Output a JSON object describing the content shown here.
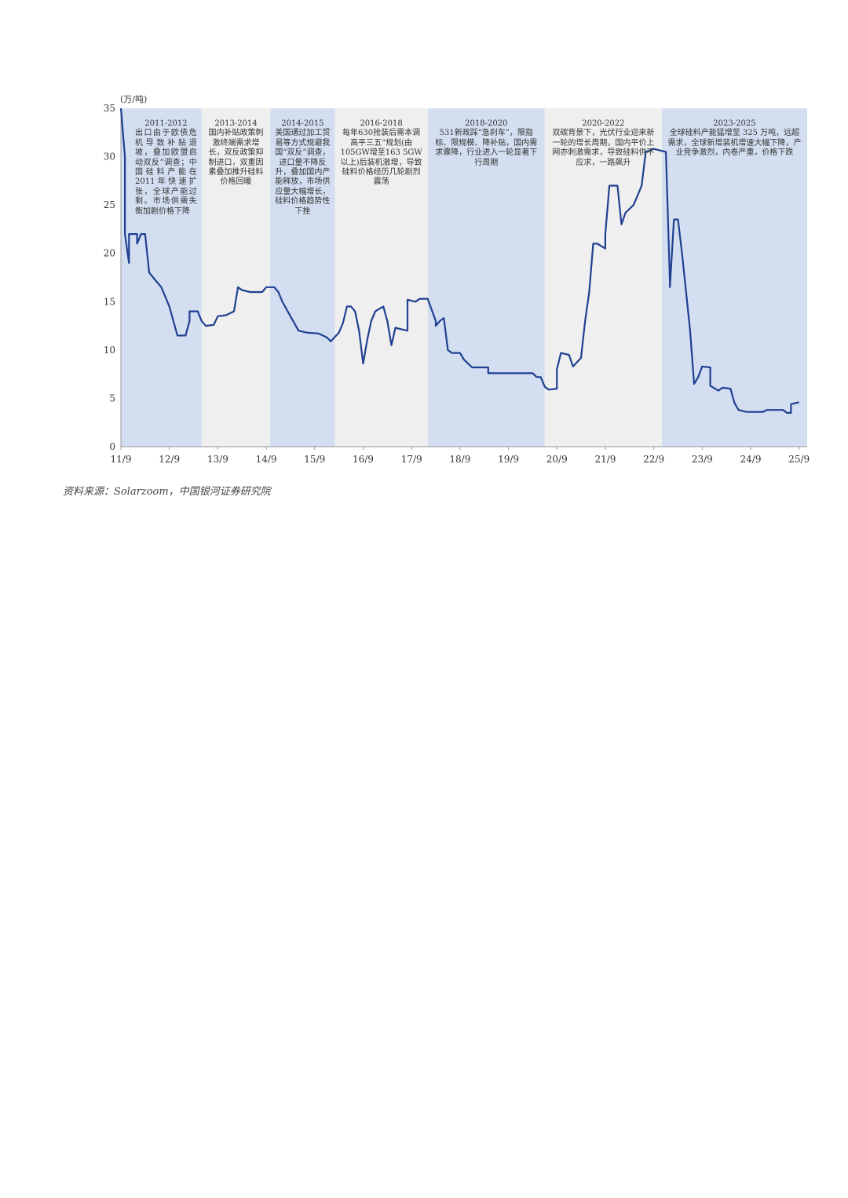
{
  "chart_data": {
    "type": "line",
    "title": "",
    "unit_label": "(万/吨)",
    "xlabel": "",
    "ylabel": "",
    "ylim": [
      0,
      35
    ],
    "yticks": [
      0,
      5,
      10,
      15,
      20,
      25,
      30,
      35
    ],
    "x_range": [
      "2011-09",
      "2025-11"
    ],
    "xticks": [
      "11/9",
      "12/9",
      "13/9",
      "14/9",
      "15/9",
      "16/9",
      "17/9",
      "18/9",
      "19/9",
      "20/9",
      "21/9",
      "22/9",
      "23/9",
      "24/9",
      "25/9"
    ],
    "xtick_dates": [
      "2011-09",
      "2012-09",
      "2013-09",
      "2014-09",
      "2015-09",
      "2016-09",
      "2017-09",
      "2018-09",
      "2019-09",
      "2020-09",
      "2021-09",
      "2022-09",
      "2023-09",
      "2024-09",
      "2025-09"
    ],
    "grid": false,
    "colors": {
      "line": "#1f3f91",
      "band_blue": "#d3dff1",
      "band_gray": "#efefef",
      "axis": "#999999"
    },
    "bands": [
      {
        "start": "2011-09",
        "end": "2013-05",
        "shade": "blue",
        "period": "2011-2012",
        "text": "出口由于欧债危机导致补贴退坡，叠加欧盟启动双反”调查；中国硅料产能在2011年快速扩张，全球产能过剩。市场供需失衡加剧价格下降"
      },
      {
        "start": "2013-05",
        "end": "2014-10",
        "shade": "gray",
        "period": "2013-2014",
        "text": "国内补贴政策刺激终端需求增长，双反政策抑制进口，双重因素叠加推升硅料价格回暖"
      },
      {
        "start": "2014-10",
        "end": "2016-02",
        "shade": "blue",
        "period": "2014-2015",
        "text": "美国通过加工贸易等方式规避我国“双反”调查，进口量不降反升，叠加国内产能释放，市场供应量大幅增长，硅料价格趋势性下挫"
      },
      {
        "start": "2016-02",
        "end": "2018-01",
        "shade": "gray",
        "period": "2016-2018",
        "text": "每年630抢装后需本调高平三五”规划(由105GW增至163 5GW以上)后装机激增，导致硅料价格经历几轮剧烈震荡"
      },
      {
        "start": "2018-01",
        "end": "2020-06",
        "shade": "blue",
        "period": "2018-2020",
        "text": "531新政踩“急刹车”，限指标、限规模、降补贴，国内需求骤降，行业进入一轮显著下行周期"
      },
      {
        "start": "2020-06",
        "end": "2022-11",
        "shade": "gray",
        "period": "2020-2022",
        "text": "双碳背景下，光伏行业迎来新一轮的增长周期，国内平价上网亦刺激需求，导致硅料供不应求，一路飙升"
      },
      {
        "start": "2022-11",
        "end": "2025-11",
        "shade": "blue",
        "period": "2023-2025",
        "text": "全球硅料产能猛增至 325 万吨，远超需求，全球新增装机增速大幅下降，产业竞争激烈，内卷严重，价格下跌"
      }
    ],
    "series": [
      {
        "points": [
          [
            "2011-09",
            35
          ],
          [
            "2011-10",
            30
          ],
          [
            "2011-10",
            22
          ],
          [
            "2011-11",
            19
          ],
          [
            "2011-11",
            22
          ],
          [
            "2012-01",
            22
          ],
          [
            "2012-01",
            21
          ],
          [
            "2012-02",
            22
          ],
          [
            "2012-03",
            22
          ],
          [
            "2012-04",
            18
          ],
          [
            "2012-05",
            17.5
          ],
          [
            "2012-07",
            16.5
          ],
          [
            "2012-09",
            14.5
          ],
          [
            "2012-10",
            13
          ],
          [
            "2012-11",
            11.5
          ],
          [
            "2013-01",
            11.5
          ],
          [
            "2013-02",
            13
          ],
          [
            "2013-02",
            14
          ],
          [
            "2013-04",
            14
          ],
          [
            "2013-05",
            13
          ],
          [
            "2013-06",
            12.5
          ],
          [
            "2013-08",
            12.6
          ],
          [
            "2013-09",
            13.5
          ],
          [
            "2013-11",
            13.6
          ],
          [
            "2014-01",
            14
          ],
          [
            "2014-02",
            16.5
          ],
          [
            "2014-03",
            16.2
          ],
          [
            "2014-05",
            16
          ],
          [
            "2014-08",
            16
          ],
          [
            "2014-09",
            16.5
          ],
          [
            "2014-11",
            16.5
          ],
          [
            "2014-12",
            16
          ],
          [
            "2015-01",
            15
          ],
          [
            "2015-03",
            13.5
          ],
          [
            "2015-05",
            12
          ],
          [
            "2015-07",
            11.8
          ],
          [
            "2015-10",
            11.7
          ],
          [
            "2015-12",
            11.3
          ],
          [
            "2016-01",
            10.9
          ],
          [
            "2016-03",
            11.8
          ],
          [
            "2016-04",
            12.8
          ],
          [
            "2016-05",
            14.5
          ],
          [
            "2016-06",
            14.5
          ],
          [
            "2016-07",
            14
          ],
          [
            "2016-08",
            12
          ],
          [
            "2016-09",
            8.6
          ],
          [
            "2016-10",
            11
          ],
          [
            "2016-11",
            13
          ],
          [
            "2016-12",
            14
          ],
          [
            "2017-02",
            14.5
          ],
          [
            "2017-03",
            13
          ],
          [
            "2017-04",
            10.5
          ],
          [
            "2017-05",
            12.3
          ],
          [
            "2017-06",
            12.2
          ],
          [
            "2017-08",
            12
          ],
          [
            "2017-08",
            15.2
          ],
          [
            "2017-10",
            15
          ],
          [
            "2017-11",
            15.3
          ],
          [
            "2018-01",
            15.3
          ],
          [
            "2018-03",
            13
          ],
          [
            "2018-03",
            12.5
          ],
          [
            "2018-04",
            13
          ],
          [
            "2018-05",
            13.3
          ],
          [
            "2018-06",
            10
          ],
          [
            "2018-07",
            9.7
          ],
          [
            "2018-09",
            9.7
          ],
          [
            "2018-10",
            9
          ],
          [
            "2018-12",
            8.2
          ],
          [
            "2019-04",
            8.2
          ],
          [
            "2019-04",
            7.6
          ],
          [
            "2020-03",
            7.6
          ],
          [
            "2020-04",
            7.2
          ],
          [
            "2020-05",
            7.2
          ],
          [
            "2020-06",
            6.2
          ],
          [
            "2020-07",
            5.9
          ],
          [
            "2020-09",
            6
          ],
          [
            "2020-09",
            8
          ],
          [
            "2020-10",
            9.7
          ],
          [
            "2020-12",
            9.5
          ],
          [
            "2021-01",
            8.3
          ],
          [
            "2021-03",
            9.2
          ],
          [
            "2021-03",
            9.3
          ],
          [
            "2021-04",
            13
          ],
          [
            "2021-05",
            16
          ],
          [
            "2021-06",
            21
          ],
          [
            "2021-07",
            21
          ],
          [
            "2021-09",
            20.5
          ],
          [
            "2021-09",
            22
          ],
          [
            "2021-10",
            27
          ],
          [
            "2021-12",
            27
          ],
          [
            "2022-01",
            23
          ],
          [
            "2022-02",
            24.2
          ],
          [
            "2022-04",
            25
          ],
          [
            "2022-05",
            26
          ],
          [
            "2022-06",
            27
          ],
          [
            "2022-07",
            30.5
          ],
          [
            "2022-09",
            30.8
          ],
          [
            "2022-12",
            30.5
          ],
          [
            "2023-01",
            17
          ],
          [
            "2023-01",
            16.5
          ],
          [
            "2023-02",
            23.5
          ],
          [
            "2023-03",
            23.5
          ],
          [
            "2023-04",
            20
          ],
          [
            "2023-05",
            16
          ],
          [
            "2023-06",
            12
          ],
          [
            "2023-07",
            6.5
          ],
          [
            "2023-07",
            6.5
          ],
          [
            "2023-08",
            7.2
          ],
          [
            "2023-09",
            8.3
          ],
          [
            "2023-11",
            8.2
          ],
          [
            "2023-11",
            6.3
          ],
          [
            "2024-01",
            5.8
          ],
          [
            "2024-02",
            6.1
          ],
          [
            "2024-04",
            6
          ],
          [
            "2024-05",
            4.5
          ],
          [
            "2024-06",
            3.8
          ],
          [
            "2024-08",
            3.6
          ],
          [
            "2024-12",
            3.6
          ],
          [
            "2025-01",
            3.8
          ],
          [
            "2025-05",
            3.8
          ],
          [
            "2025-06",
            3.5
          ],
          [
            "2025-07",
            3.5
          ],
          [
            "2025-07",
            4.4
          ],
          [
            "2025-09",
            4.6
          ]
        ]
      }
    ]
  },
  "source": "资料来源：Solarzoom，中国银河证券研究院"
}
